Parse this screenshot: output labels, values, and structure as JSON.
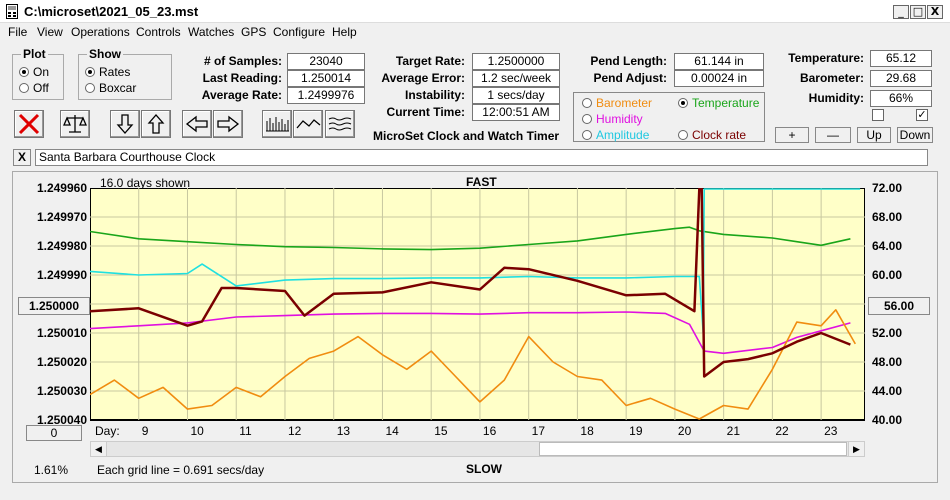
{
  "window": {
    "title": "C:\\microset\\2021_05_23.mst",
    "min": "_",
    "max": "□",
    "close": "X"
  },
  "menu": [
    "File",
    "View",
    "Operations",
    "Controls",
    "Watches",
    "GPS",
    "Configure",
    "Help"
  ],
  "plot_group": {
    "title": "Plot",
    "on": "On",
    "off": "Off"
  },
  "show_group": {
    "title": "Show",
    "rates": "Rates",
    "boxcar": "Boxcar"
  },
  "stats": {
    "samples_label": "# of Samples:",
    "samples": "23040",
    "last_label": "Last Reading:",
    "last": "1.250014",
    "avg_label": "Average Rate:",
    "avg": "1.2499976",
    "target_label": "Target Rate:",
    "target": "1.2500000",
    "avgerr_label": "Average Error:",
    "avgerr": "1.2 sec/week",
    "instab_label": "Instability:",
    "instab": "1 secs/day",
    "time_label": "Current Time:",
    "time": "12:00:51 AM",
    "pendlen_label": "Pend Length:",
    "pendlen": "61.144 in",
    "pendadj_label": "Pend Adjust:",
    "pendadj": "0.00024 in",
    "temp_label": "Temperature:",
    "temp": "65.12",
    "baro_label": "Barometer:",
    "baro": "29.68",
    "hum_label": "Humidity:",
    "hum": "66%"
  },
  "app_title": "MicroSet Clock and Watch Timer",
  "sensor_options": {
    "barometer": "Barometer",
    "temperature": "Temperature",
    "humidity": "Humidity",
    "amplitude": "Amplitude",
    "clockrate": "Clock rate"
  },
  "scale_buttons": {
    "plus": "+",
    "minus": "—",
    "up": "Up",
    "down": "Down"
  },
  "close_x": "X",
  "watch_name": "Santa Barbara Courthouse Clock",
  "colors": {
    "plot_bg": "#ffffc8",
    "rate": "#7a0000",
    "temperature": "#1aa51a",
    "humidity": "#e010e0",
    "amplitude": "#20e0e0",
    "barometer": "#f08c10"
  },
  "chart": {
    "days_shown": "16.0 days shown",
    "top_label": "FAST",
    "bottom_label": "SLOW",
    "day_label": "Day:",
    "left_btn": "1.250000",
    "right_btn": "56.00",
    "zero_btn": "0",
    "pct": "1.61%",
    "grid_note": "Each grid line = 0.691 secs/day",
    "left_ticks": [
      "1.249960",
      "1.249970",
      "1.249980",
      "1.249990",
      "1.250000",
      "1.250010",
      "1.250020",
      "1.250030",
      "1.250040"
    ],
    "right_ticks": [
      "72.00",
      "68.00",
      "64.00",
      "60.00",
      "56.00",
      "52.00",
      "48.00",
      "44.00",
      "40.00"
    ],
    "days": [
      "9",
      "10",
      "11",
      "12",
      "13",
      "14",
      "15",
      "16",
      "17",
      "18",
      "19",
      "20",
      "21",
      "22",
      "23"
    ]
  },
  "chart_data": {
    "type": "line",
    "x_range": [
      8,
      23.9
    ],
    "left_ylim": [
      1.24996,
      1.25004
    ],
    "right_ylim": [
      40,
      72
    ],
    "series": [
      {
        "name": "Temperature",
        "x": [
          8,
          9,
          10,
          11,
          12,
          13,
          14,
          15,
          16,
          17,
          18,
          19,
          20,
          20.3,
          20.5,
          21,
          22,
          22.5,
          23,
          23.6
        ],
        "y": [
          66,
          65,
          64.6,
          64.2,
          63.9,
          63.8,
          63.6,
          63.5,
          63.7,
          64.2,
          64.7,
          65.6,
          66.4,
          66.6,
          66.1,
          65.6,
          65.1,
          64.6,
          64.1,
          65.0
        ]
      },
      {
        "name": "Humidity",
        "x": [
          8,
          9,
          10,
          11,
          12,
          13,
          14,
          15,
          16,
          17,
          18,
          19,
          19.8,
          20.3,
          20.6,
          21,
          22,
          22.5,
          23,
          23.6
        ],
        "y": [
          52.6,
          53,
          53.4,
          54.2,
          54.4,
          54.6,
          54.7,
          54.7,
          54.6,
          54.8,
          54.8,
          54.9,
          54.7,
          53.2,
          49.5,
          49.2,
          50,
          51.4,
          52.3,
          53.4
        ]
      },
      {
        "name": "Amplitude",
        "x": [
          8,
          9,
          10,
          10.3,
          11,
          12,
          13,
          14,
          15,
          16,
          17,
          18,
          19,
          20,
          20.5,
          20.58,
          20.6,
          23.8
        ],
        "y": [
          60.5,
          60,
          60.2,
          61.5,
          58.5,
          59.3,
          59.5,
          59.5,
          59.6,
          59.6,
          59.8,
          59.6,
          59.6,
          59.8,
          59.8,
          52,
          72,
          72
        ]
      },
      {
        "name": "Barometer",
        "x": [
          8,
          8.5,
          9,
          9.5,
          10,
          10.5,
          11,
          11.5,
          12,
          12.5,
          13,
          13.5,
          14,
          14.5,
          15,
          15.5,
          16,
          16.5,
          17,
          17.5,
          18,
          18.5,
          19,
          19.5,
          20,
          20.5,
          21,
          21.5,
          22,
          22.5,
          23,
          23.3,
          23.7
        ],
        "y": [
          43.5,
          45.5,
          43,
          44.5,
          41.5,
          42,
          44.5,
          43.2,
          46,
          48.5,
          49.5,
          51.5,
          49,
          47,
          49.5,
          46,
          42.5,
          45.5,
          51.5,
          48,
          46,
          45.5,
          42,
          43,
          41.5,
          39.8,
          42,
          41.5,
          47,
          53.5,
          53,
          55.2,
          50.5
        ]
      },
      {
        "name": "Clock rate",
        "x": [
          8,
          9,
          10,
          10.3,
          10.7,
          11,
          12,
          12.4,
          13,
          14,
          15,
          16,
          16.5,
          17,
          18,
          19,
          19.8,
          20.4,
          20.5,
          20.55,
          20.6,
          21,
          21.5,
          22,
          22.5,
          23,
          23.6
        ],
        "y": [
          1.2500025,
          1.2500015,
          1.2500075,
          1.250006,
          1.2499945,
          1.2499945,
          1.2499955,
          1.250004,
          1.2499965,
          1.249996,
          1.2499925,
          1.249995,
          1.2499875,
          1.249988,
          1.249992,
          1.249997,
          1.2499965,
          1.2500025,
          1.24996,
          1.24996,
          1.250025,
          1.25002,
          1.250019,
          1.250017,
          1.250013,
          1.25001,
          1.250014
        ]
      }
    ]
  }
}
